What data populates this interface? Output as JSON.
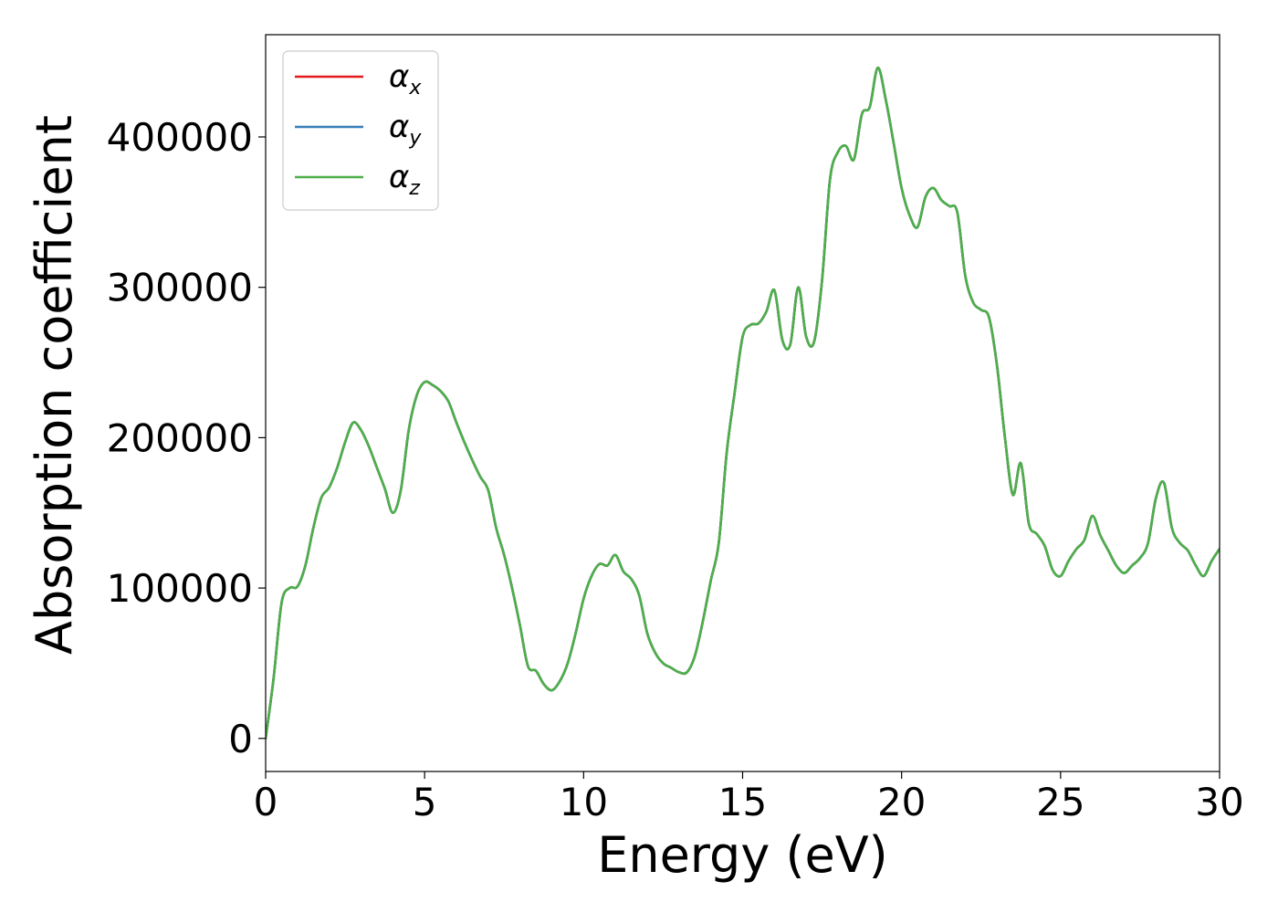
{
  "chart_data": {
    "type": "line",
    "title": "",
    "xlabel": "Energy (eV)",
    "ylabel": "Absorption coefficient",
    "xlim": [
      0,
      30
    ],
    "ylim": [
      -22000,
      468000
    ],
    "xticks": [
      0,
      5,
      10,
      15,
      20,
      25,
      30
    ],
    "xtick_labels": [
      "0",
      "5",
      "10",
      "15",
      "20",
      "25",
      "30"
    ],
    "yticks": [
      0,
      100000,
      200000,
      300000,
      400000
    ],
    "ytick_labels": [
      "0",
      "100000",
      "200000",
      "300000",
      "400000"
    ],
    "grid": false,
    "legend_position": "top-left",
    "x": [
      0,
      0.25,
      0.5,
      0.75,
      1.0,
      1.25,
      1.5,
      1.75,
      2.0,
      2.25,
      2.5,
      2.75,
      3.0,
      3.25,
      3.5,
      3.75,
      4.0,
      4.25,
      4.5,
      4.75,
      5.0,
      5.25,
      5.5,
      5.75,
      6.0,
      6.25,
      6.5,
      6.75,
      7.0,
      7.25,
      7.5,
      7.75,
      8.0,
      8.25,
      8.5,
      8.75,
      9.0,
      9.25,
      9.5,
      9.75,
      10.0,
      10.25,
      10.5,
      10.75,
      11.0,
      11.25,
      11.5,
      11.75,
      12.0,
      12.25,
      12.5,
      12.75,
      13.0,
      13.25,
      13.5,
      13.75,
      14.0,
      14.25,
      14.5,
      14.75,
      15.0,
      15.25,
      15.5,
      15.75,
      16.0,
      16.25,
      16.5,
      16.75,
      17.0,
      17.25,
      17.5,
      17.75,
      18.0,
      18.25,
      18.5,
      18.75,
      19.0,
      19.25,
      19.5,
      19.75,
      20.0,
      20.25,
      20.5,
      20.75,
      21.0,
      21.25,
      21.5,
      21.75,
      22.0,
      22.25,
      22.5,
      22.75,
      23.0,
      23.25,
      23.5,
      23.75,
      24.0,
      24.25,
      24.5,
      24.75,
      25.0,
      25.25,
      25.5,
      25.75,
      26.0,
      26.25,
      26.5,
      26.75,
      27.0,
      27.25,
      27.5,
      27.75,
      28.0,
      28.25,
      28.5,
      28.75,
      29.0,
      29.25,
      29.5,
      29.75,
      30.0
    ],
    "series": [
      {
        "name": "α_x",
        "name_base": "α",
        "name_sub": "x",
        "color": "#e41a1c",
        "values": [
          0,
          40000,
          90000,
          100000,
          101000,
          115000,
          140000,
          160000,
          167000,
          180000,
          197000,
          210000,
          205000,
          194000,
          180000,
          166000,
          150000,
          165000,
          205000,
          228000,
          237000,
          235000,
          231000,
          224000,
          210000,
          197000,
          185000,
          174000,
          165000,
          140000,
          122000,
          100000,
          75000,
          48000,
          45000,
          36000,
          32000,
          38000,
          50000,
          70000,
          93000,
          108000,
          116000,
          115000,
          122000,
          111000,
          106000,
          95000,
          70000,
          57000,
          50000,
          47000,
          44000,
          44000,
          55000,
          78000,
          105000,
          130000,
          190000,
          230000,
          267000,
          275000,
          276000,
          284000,
          298000,
          265000,
          262000,
          300000,
          267000,
          264000,
          305000,
          372000,
          390000,
          394000,
          385000,
          415000,
          420000,
          446000,
          425000,
          396000,
          366000,
          348000,
          340000,
          360000,
          366000,
          358000,
          354000,
          350000,
          308000,
          290000,
          285000,
          280000,
          248000,
          200000,
          162000,
          183000,
          143000,
          136000,
          128000,
          112000,
          108000,
          118000,
          126000,
          132000,
          148000,
          135000,
          125000,
          115000,
          110000,
          115000,
          120000,
          130000,
          160000,
          170000,
          140000,
          130000,
          125000,
          115000,
          108000,
          118000,
          126000
        ],
        "style": "solid"
      },
      {
        "name": "α_y",
        "name_base": "α",
        "name_sub": "y",
        "color": "#377eb8",
        "values": [
          0,
          40000,
          90000,
          100000,
          101000,
          115000,
          140000,
          160000,
          167000,
          180000,
          197000,
          210000,
          205000,
          194000,
          180000,
          166000,
          150000,
          165000,
          205000,
          228000,
          237000,
          235000,
          231000,
          224000,
          210000,
          197000,
          185000,
          174000,
          165000,
          140000,
          122000,
          100000,
          75000,
          48000,
          45000,
          36000,
          32000,
          38000,
          50000,
          70000,
          93000,
          108000,
          116000,
          115000,
          122000,
          111000,
          106000,
          95000,
          70000,
          57000,
          50000,
          47000,
          44000,
          44000,
          55000,
          78000,
          105000,
          130000,
          190000,
          230000,
          267000,
          275000,
          276000,
          284000,
          298000,
          265000,
          262000,
          300000,
          267000,
          264000,
          305000,
          372000,
          390000,
          394000,
          385000,
          415000,
          420000,
          446000,
          425000,
          396000,
          366000,
          348000,
          340000,
          360000,
          366000,
          358000,
          354000,
          350000,
          308000,
          290000,
          285000,
          280000,
          248000,
          200000,
          162000,
          183000,
          143000,
          136000,
          128000,
          112000,
          108000,
          118000,
          126000,
          132000,
          148000,
          135000,
          125000,
          115000,
          110000,
          115000,
          120000,
          130000,
          160000,
          170000,
          140000,
          130000,
          125000,
          115000,
          108000,
          118000,
          126000
        ],
        "style": "solid"
      },
      {
        "name": "α_z",
        "name_base": "α",
        "name_sub": "z",
        "color": "#4daf4a",
        "values": [
          0,
          40000,
          90000,
          100000,
          101000,
          115000,
          140000,
          160000,
          167000,
          180000,
          197000,
          210000,
          205000,
          194000,
          180000,
          166000,
          150000,
          165000,
          205000,
          228000,
          237000,
          235000,
          231000,
          224000,
          210000,
          197000,
          185000,
          174000,
          165000,
          140000,
          122000,
          100000,
          75000,
          48000,
          45000,
          36000,
          32000,
          38000,
          50000,
          70000,
          93000,
          108000,
          116000,
          115000,
          122000,
          111000,
          106000,
          95000,
          70000,
          57000,
          50000,
          47000,
          44000,
          44000,
          55000,
          78000,
          105000,
          130000,
          190000,
          230000,
          267000,
          275000,
          276000,
          284000,
          298000,
          265000,
          262000,
          300000,
          267000,
          264000,
          305000,
          372000,
          390000,
          394000,
          385000,
          415000,
          420000,
          446000,
          425000,
          396000,
          366000,
          348000,
          340000,
          360000,
          366000,
          358000,
          354000,
          350000,
          308000,
          290000,
          285000,
          280000,
          248000,
          200000,
          162000,
          183000,
          143000,
          136000,
          128000,
          112000,
          108000,
          118000,
          126000,
          132000,
          148000,
          135000,
          125000,
          115000,
          110000,
          115000,
          120000,
          130000,
          160000,
          170000,
          140000,
          130000,
          125000,
          115000,
          108000,
          118000,
          126000
        ],
        "style": "solid"
      }
    ]
  }
}
